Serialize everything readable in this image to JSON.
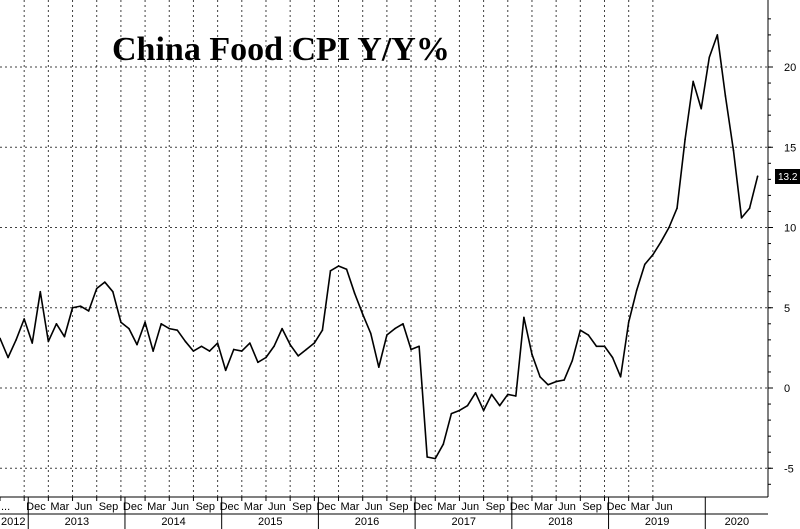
{
  "chart_data": {
    "type": "line",
    "title": "China Food CPI Y/Y%",
    "xlabel": "",
    "ylabel": "",
    "ylim": [
      -7,
      24
    ],
    "yticks": [
      -5,
      0,
      5,
      10,
      15,
      20
    ],
    "y_axis_position": "right",
    "grid": true,
    "last_value_label": "13.2",
    "month_ticks": [
      "...",
      "Dec",
      "Mar",
      "Jun",
      "Sep",
      "Dec",
      "Mar",
      "Jun",
      "Sep",
      "Dec",
      "Mar",
      "Jun",
      "Sep",
      "Dec",
      "Mar",
      "Jun",
      "Sep",
      "Dec",
      "Mar",
      "Jun",
      "Sep",
      "Dec",
      "Mar",
      "Jun",
      "Sep",
      "Dec",
      "Mar",
      "Jun"
    ],
    "year_ticks": [
      "2012",
      "2013",
      "2014",
      "2015",
      "2016",
      "2017",
      "2018",
      "2019",
      "2020"
    ],
    "x_start": "2012-09",
    "series": [
      {
        "values": [
          3.1,
          1.9,
          3.0,
          4.3,
          2.8,
          6.0,
          2.9,
          4.0,
          3.2,
          5.0,
          5.1,
          4.8,
          6.2,
          6.6,
          6.0,
          4.1,
          3.7,
          2.7,
          4.1,
          2.3,
          4.0,
          3.7,
          3.6,
          2.9,
          2.3,
          2.6,
          2.3,
          2.8,
          1.1,
          2.4,
          2.3,
          2.8,
          1.6,
          1.9,
          2.6,
          3.7,
          2.7,
          2.0,
          2.4,
          2.8,
          3.6,
          7.3,
          7.6,
          7.4,
          5.9,
          4.6,
          3.4,
          1.3,
          3.3,
          3.7,
          4.0,
          2.4,
          2.6,
          -4.3,
          -4.4,
          -3.5,
          -1.6,
          -1.4,
          -1.1,
          -0.3,
          -1.4,
          -0.4,
          -1.1,
          -0.4,
          -0.5,
          4.4,
          2.1,
          0.7,
          0.2,
          0.4,
          0.5,
          1.7,
          3.6,
          3.3,
          2.6,
          2.6,
          1.9,
          0.7,
          4.1,
          6.1,
          7.7,
          8.3,
          9.1,
          10.0,
          11.2,
          15.5,
          19.1,
          17.4,
          20.6,
          22.0,
          18.2,
          14.8,
          10.6,
          11.2,
          13.2
        ]
      }
    ]
  }
}
